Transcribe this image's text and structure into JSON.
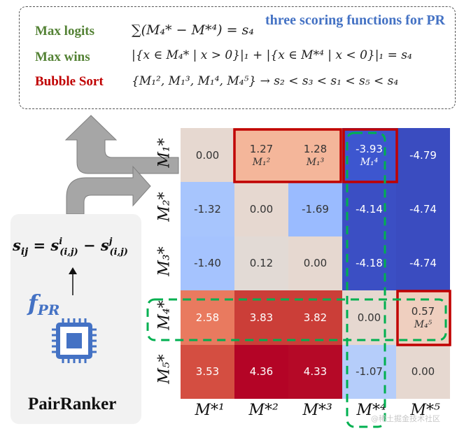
{
  "top_panel": {
    "heading": "three scoring functions for PR",
    "rows": [
      {
        "label": "Max logits",
        "color": "#548235",
        "formula": "∑(M₄* − M*⁴) = s₄"
      },
      {
        "label": "Max wins",
        "color": "#548235",
        "formula": "|{x ∈ M₄* | x > 0}|₁ + |{x ∈ M*⁴ | x < 0}|₁ = s₄"
      },
      {
        "label": "Bubble Sort",
        "color": "#c00000",
        "formula": "{M₁², M₁³, M₁⁴, M₄⁵} → s₂ < s₃ < s₁ < s₅ < s₄"
      }
    ]
  },
  "pairranker": {
    "formula": "sᵢⱼ = s⁽ⁱ,ʲ⁾ᵢ − s⁽ⁱ,ʲ⁾ʲ",
    "formula_display": "s",
    "fpr": "f",
    "fpr_sub": "PR",
    "label": "PairRanker"
  },
  "matrix": {
    "row_labels": [
      "M₁*",
      "M₂*",
      "M₃*",
      "M₄*",
      "M₅*"
    ],
    "col_labels": [
      "M*¹",
      "M*²",
      "M*³",
      "M*⁴",
      "M*⁵"
    ],
    "cells": [
      [
        {
          "v": "0.00",
          "c": "#e6d8d0"
        },
        {
          "v": "1.27",
          "c": "#f4b69a",
          "sub": "M₁²"
        },
        {
          "v": "1.28",
          "c": "#f4b69a",
          "sub": "M₁³"
        },
        {
          "v": "-3.93",
          "c": "#3d56cf",
          "sub": "M₁⁴"
        },
        {
          "v": "-4.79",
          "c": "#3a4cc0"
        }
      ],
      [
        {
          "v": "-1.32",
          "c": "#a7c5fd"
        },
        {
          "v": "0.00",
          "c": "#e6d8d0"
        },
        {
          "v": "-1.69",
          "c": "#9abbff"
        },
        {
          "v": "-4.14",
          "c": "#3b4fc4"
        },
        {
          "v": "-4.74",
          "c": "#3a4cc0"
        }
      ],
      [
        {
          "v": "-1.40",
          "c": "#a5c3fe"
        },
        {
          "v": "0.12",
          "c": "#e2dad5"
        },
        {
          "v": "0.00",
          "c": "#e6d8d0"
        },
        {
          "v": "-4.18",
          "c": "#3b4fc4"
        },
        {
          "v": "-4.74",
          "c": "#3a4cc0"
        }
      ],
      [
        {
          "v": "2.58",
          "c": "#e97a5f"
        },
        {
          "v": "3.83",
          "c": "#cb3e38"
        },
        {
          "v": "3.82",
          "c": "#cb3e38"
        },
        {
          "v": "0.00",
          "c": "#e6d8d0"
        },
        {
          "v": "0.57",
          "c": "#efcfbf",
          "sub": "M₄⁵"
        }
      ],
      [
        {
          "v": "3.53",
          "c": "#d44e41"
        },
        {
          "v": "4.36",
          "c": "#b40426"
        },
        {
          "v": "4.33",
          "c": "#b50927"
        },
        {
          "v": "-1.07",
          "c": "#b5cdfa"
        },
        {
          "v": "0.00",
          "c": "#e6d8d0"
        }
      ]
    ]
  },
  "watermark": "@稀土掘金技术社区",
  "colors": {
    "red_box": "#c00000",
    "green_dash": "#00b050",
    "blue": "#4472c4",
    "arrow": "#a6a6a6"
  }
}
